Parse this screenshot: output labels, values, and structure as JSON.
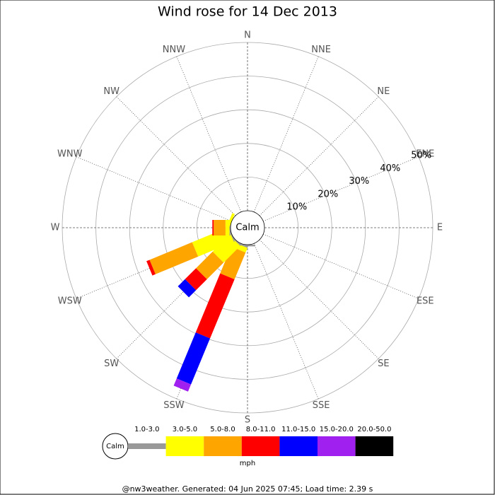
{
  "chart_data": {
    "type": "windrose",
    "title": "Wind rose for 14 Dec 2013",
    "categories": [
      "N",
      "NNE",
      "NE",
      "ENE",
      "E",
      "ESE",
      "SE",
      "SSE",
      "S",
      "SSW",
      "SW",
      "WSW",
      "W",
      "WNW",
      "NW",
      "NNW"
    ],
    "calm_label": "Calm",
    "ylim": [
      0,
      50
    ],
    "yticks": [
      {
        "value": 10,
        "label": "10%"
      },
      {
        "value": 20,
        "label": "20%"
      },
      {
        "value": 30,
        "label": "30%"
      },
      {
        "value": 40,
        "label": "40%"
      },
      {
        "value": 50,
        "label": "50%"
      }
    ],
    "units": "mph",
    "series": [
      {
        "name": "1.0-3.0",
        "color": "#999999",
        "values": [
          0,
          0,
          0,
          0,
          0,
          0,
          0,
          0,
          0.5,
          0.5,
          0.3,
          0.3,
          0.3,
          0,
          0,
          0
        ]
      },
      {
        "name": "3.0-5.0",
        "color": "#ffff00",
        "values": [
          0,
          0,
          0,
          0,
          0,
          0,
          0,
          0,
          0,
          1.5,
          7,
          11.5,
          1.2,
          0.8,
          0,
          0
        ]
      },
      {
        "name": "5.0-8.0",
        "color": "#ffa500",
        "values": [
          0,
          0,
          0,
          0,
          0,
          0,
          0,
          0,
          0,
          8.6,
          7,
          13.7,
          3.5,
          0,
          0,
          0
        ]
      },
      {
        "name": "8.0-11.0",
        "color": "#ff0000",
        "values": [
          0,
          0,
          0,
          0,
          0,
          0,
          0,
          0,
          0,
          19,
          4.6,
          1,
          0.4,
          0,
          0,
          0
        ]
      },
      {
        "name": "11.0-15.0",
        "color": "#0000ff",
        "values": [
          0,
          0,
          0,
          0,
          0,
          0,
          0,
          0,
          0,
          14.8,
          3,
          0,
          0,
          0,
          0,
          0
        ]
      },
      {
        "name": "15.0-20.0",
        "color": "#a020f0",
        "values": [
          0,
          0,
          0,
          0,
          0,
          0,
          0,
          0,
          0,
          2.3,
          0,
          0,
          0,
          0,
          0,
          0
        ]
      },
      {
        "name": "20.0-50.0",
        "color": "#000000",
        "values": [
          0,
          0,
          0,
          0,
          0,
          0,
          0,
          0,
          0,
          0,
          0,
          0,
          0,
          0,
          0,
          0
        ]
      }
    ],
    "footer": "@nw3weather. Generated: 04 Jun 2025 07:45; Load time: 2.39 s"
  }
}
